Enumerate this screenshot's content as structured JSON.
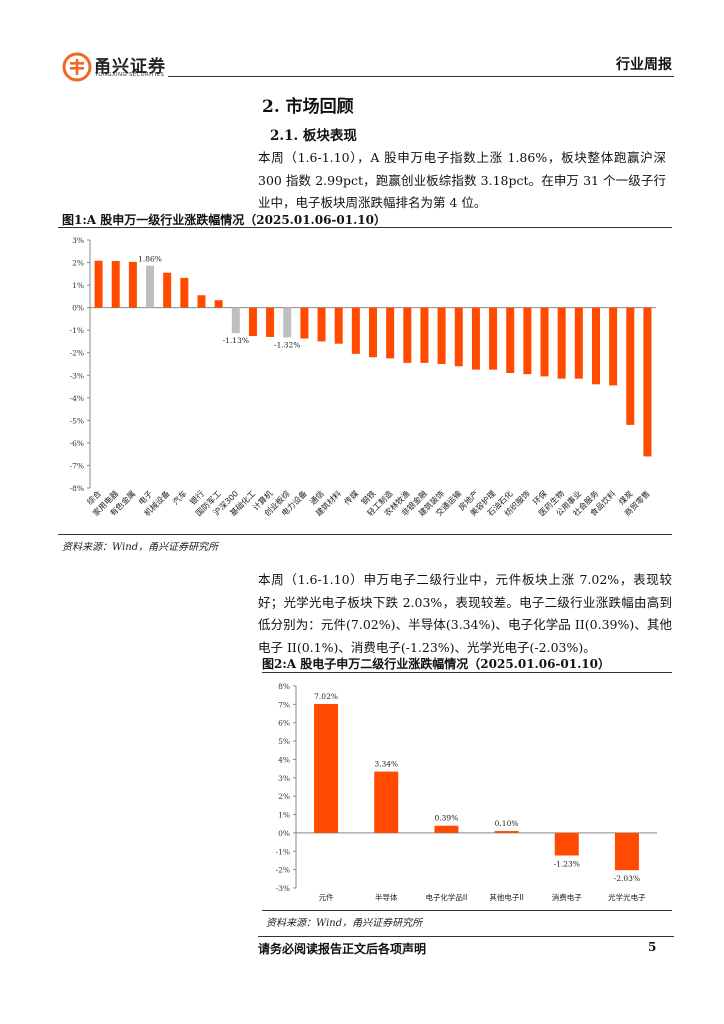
{
  "header": {
    "company_cn": "甬兴证券",
    "company_en": "YONGXING SECURITIES",
    "doc_type": "行业周报",
    "colors": {
      "brand": "#F26722",
      "text": "#222222"
    }
  },
  "section": {
    "heading": "2. 市场回顾",
    "subheading": "2.1. 板块表现"
  },
  "paragraph1": "本周（1.6-1.10），A 股申万电子指数上涨 1.86%，板块整体跑赢沪深300 指数 2.99pct，跑赢创业板综指数 3.18pct。在申万 31 个一级子行业中，电子板块周涨跌幅排名为第 4 位。",
  "paragraph2": "本周（1.6-1.10）申万电子二级行业中，元件板块上涨 7.02%，表现较好；光学光电子板块下跌 2.03%，表现较差。电子二级行业涨跌幅由高到低分别为：元件(7.02%)、半导体(3.34%)、电子化学品 II(0.39%)、其他电子 II(0.1%)、消费电子(-1.23%)、光学光电子(-2.03%)。",
  "figure1": {
    "title": "图1:A 股申万一级行业涨跌幅情况（2025.01.06-01.10）",
    "source": "资料来源：Wind，甬兴证券研究所"
  },
  "figure2": {
    "title": "图2:A 股电子申万二级行业涨跌幅情况（2025.01.06-01.10）",
    "source": "资料来源：Wind，甬兴证券研究所"
  },
  "footer": {
    "note": "请务必阅读报告正文后各项声明",
    "page": "5"
  },
  "chart_data": [
    {
      "type": "bar",
      "title": "A 股申万一级行业涨跌幅情况（2025.01.06-01.10）",
      "ylim": [
        -8,
        3
      ],
      "yticks": [
        "3%",
        "2%",
        "1%",
        "0%",
        "-1%",
        "-2%",
        "-3%",
        "-4%",
        "-5%",
        "-6%",
        "-7%",
        "-8%"
      ],
      "categories": [
        "综合",
        "家用电器",
        "有色金属",
        "电子",
        "机械设备",
        "汽车",
        "银行",
        "国防军工",
        "沪深300",
        "基础化工",
        "计算机",
        "创业板综",
        "电力设备",
        "通信",
        "建筑材料",
        "传媒",
        "钢铁",
        "轻工制造",
        "农林牧渔",
        "非银金融",
        "建筑装饰",
        "交通运输",
        "房地产",
        "美容护理",
        "石油石化",
        "纺织服饰",
        "环保",
        "医药生物",
        "公用事业",
        "社会服务",
        "食品饮料",
        "煤炭",
        "商贸零售"
      ],
      "values": [
        2.08,
        2.07,
        2.03,
        1.86,
        1.55,
        1.32,
        0.55,
        0.33,
        -1.13,
        -1.26,
        -1.3,
        -1.32,
        -1.37,
        -1.5,
        -1.6,
        -2.05,
        -2.2,
        -2.25,
        -2.45,
        -2.45,
        -2.5,
        -2.6,
        -2.75,
        -2.75,
        -2.9,
        -2.95,
        -3.05,
        -3.15,
        -3.15,
        -3.4,
        -3.45,
        -5.2,
        -6.6
      ],
      "highlight": [
        "电子",
        "沪深300",
        "创业板综"
      ],
      "data_labels": {
        "电子": "1.86%",
        "沪深300": "-1.13%",
        "创业板综": "-1.32%"
      },
      "colors": {
        "bar": "#FF4A00",
        "highlight": "#BFBFBF"
      }
    },
    {
      "type": "bar",
      "title": "A 股电子申万二级行业涨跌幅情况（2025.01.06-01.10）",
      "ylim": [
        -3,
        8
      ],
      "yticks": [
        "8%",
        "7%",
        "6%",
        "5%",
        "4%",
        "3%",
        "2%",
        "1%",
        "0%",
        "-1%",
        "-2%",
        "-3%"
      ],
      "categories": [
        "元件",
        "半导体",
        "电子化学品II",
        "其他电子II",
        "消费电子",
        "光学光电子"
      ],
      "values": [
        7.02,
        3.34,
        0.39,
        0.1,
        -1.23,
        -2.03
      ],
      "data_labels": [
        "7.02%",
        "3.34%",
        "0.39%",
        "0.10%",
        "-1.23%",
        "-2.03%"
      ],
      "colors": {
        "bar": "#FF4A00"
      }
    }
  ]
}
